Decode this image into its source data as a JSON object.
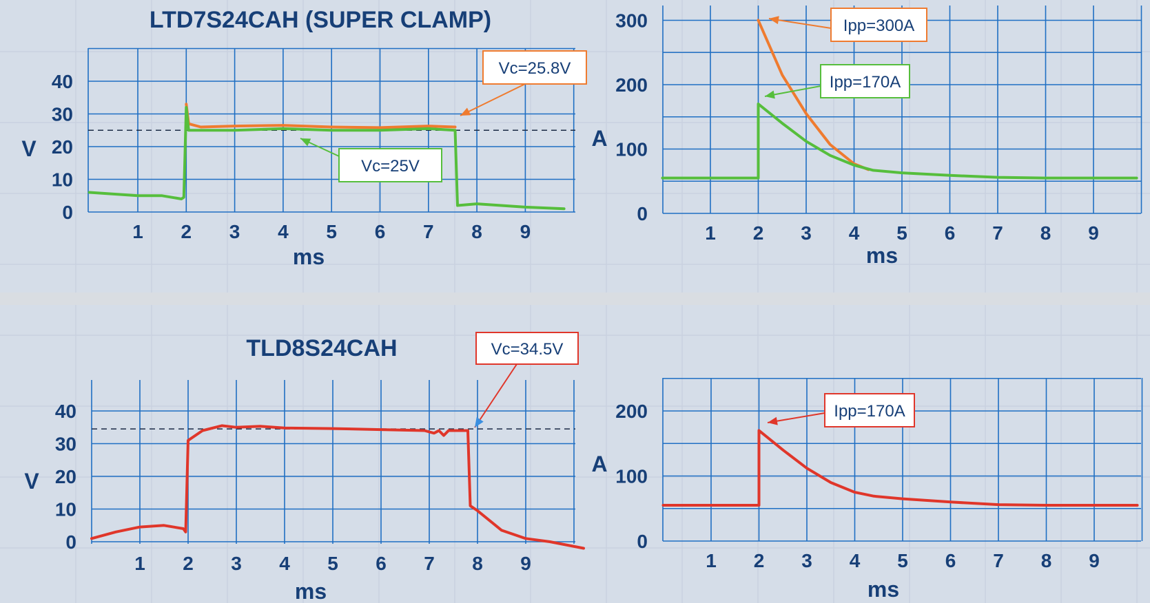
{
  "colors": {
    "background": "#d5dde8",
    "grid": "#1f6fc3",
    "text": "#173f77",
    "super_clamp_orange": "#ef7b2f",
    "super_clamp_green": "#56be3c",
    "tld_red": "#e0362a",
    "arrow_blue": "#3b8fe0"
  },
  "chart_data": [
    {
      "type": "line",
      "title": "LTD7S24CAH (SUPER CLAMP)",
      "xlabel": "ms",
      "ylabel": "V",
      "xlim": [
        0,
        10
      ],
      "ylim": [
        0,
        50
      ],
      "x_ticks": [
        "1",
        "2",
        "3",
        "4",
        "5",
        "6",
        "7",
        "8",
        "9"
      ],
      "y_ticks": [
        "0",
        "10",
        "20",
        "30",
        "40"
      ],
      "reference_line": 25,
      "series": [
        {
          "points": [
            [
              2.0,
              33
            ],
            [
              2.05,
              27
            ],
            [
              2.3,
              26
            ],
            [
              3,
              26.3
            ],
            [
              4,
              26.5
            ],
            [
              5,
              26
            ],
            [
              6,
              25.8
            ],
            [
              7,
              26.3
            ],
            [
              7.55,
              26
            ]
          ]
        },
        {
          "points": [
            [
              0,
              6
            ],
            [
              0.5,
              5.5
            ],
            [
              1,
              5
            ],
            [
              1.5,
              5
            ],
            [
              1.9,
              4
            ],
            [
              1.95,
              4.5
            ],
            [
              2.0,
              32
            ],
            [
              2.05,
              25
            ],
            [
              2.3,
              25
            ],
            [
              3,
              25
            ],
            [
              4,
              25.5
            ],
            [
              5,
              25
            ],
            [
              6,
              25
            ],
            [
              7,
              25.5
            ],
            [
              7.55,
              25
            ],
            [
              7.6,
              2
            ],
            [
              8,
              2.5
            ],
            [
              8.5,
              2
            ],
            [
              9,
              1.5
            ],
            [
              9.8,
              1
            ]
          ]
        }
      ],
      "annotations": [
        {
          "text": "Vc=25.8V",
          "x": 7.5,
          "y": 26
        },
        {
          "text": "Vc=25V",
          "x": 4.4,
          "y": 23
        }
      ]
    },
    {
      "type": "line",
      "xlabel": "ms",
      "ylabel": "A",
      "xlim": [
        0,
        10
      ],
      "ylim": [
        0,
        310
      ],
      "x_ticks": [
        "1",
        "2",
        "3",
        "4",
        "5",
        "6",
        "7",
        "8",
        "9"
      ],
      "y_ticks": [
        "0",
        "100",
        "200",
        "300"
      ],
      "series": [
        {
          "points": [
            [
              2,
              300
            ],
            [
              2.5,
              215
            ],
            [
              3,
              155
            ],
            [
              3.5,
              107
            ],
            [
              4,
              77
            ],
            [
              4.3,
              68
            ]
          ]
        },
        {
          "points": [
            [
              0,
              55
            ],
            [
              1,
              55
            ],
            [
              2,
              55
            ],
            [
              2,
              170
            ],
            [
              2.5,
              140
            ],
            [
              3,
              112
            ],
            [
              3.5,
              90
            ],
            [
              4,
              75
            ],
            [
              4.4,
              67
            ],
            [
              5,
              63
            ],
            [
              6,
              59
            ],
            [
              7,
              56
            ],
            [
              8,
              55
            ],
            [
              9,
              55
            ],
            [
              9.9,
              55
            ]
          ]
        }
      ],
      "annotations": [
        {
          "text": "Ipp=300A",
          "x": 2,
          "y": 300
        },
        {
          "text": "Ipp=170A",
          "x": 2,
          "y": 170
        }
      ]
    },
    {
      "type": "line",
      "title": "TLD8S24CAH",
      "xlabel": "ms",
      "ylabel": "V",
      "xlim": [
        0,
        10
      ],
      "ylim": [
        0,
        50
      ],
      "x_ticks": [
        "1",
        "2",
        "3",
        "4",
        "5",
        "6",
        "7",
        "8",
        "9"
      ],
      "y_ticks": [
        "0",
        "10",
        "20",
        "30",
        "40"
      ],
      "reference_line": 34.5,
      "series": [
        {
          "points": [
            [
              0,
              1
            ],
            [
              0.5,
              3
            ],
            [
              1,
              4.5
            ],
            [
              1.5,
              5
            ],
            [
              1.9,
              4
            ],
            [
              1.95,
              3
            ],
            [
              2,
              31
            ],
            [
              2.3,
              34
            ],
            [
              2.7,
              35.5
            ],
            [
              3,
              35
            ],
            [
              3.5,
              35.3
            ],
            [
              4,
              34.8
            ],
            [
              5,
              34.6
            ],
            [
              6,
              34.3
            ],
            [
              6.9,
              34
            ],
            [
              7.1,
              33.2
            ],
            [
              7.2,
              34
            ],
            [
              7.3,
              32.5
            ],
            [
              7.4,
              34
            ],
            [
              7.8,
              34
            ],
            [
              7.85,
              11
            ],
            [
              8,
              9.5
            ],
            [
              8.5,
              3.5
            ],
            [
              9,
              1
            ],
            [
              9.5,
              0
            ],
            [
              10.2,
              -2
            ]
          ]
        }
      ],
      "annotations": [
        {
          "text": "Vc=34.5V",
          "x": 7.9,
          "y": 35
        }
      ]
    },
    {
      "type": "line",
      "xlabel": "ms",
      "ylabel": "A",
      "xlim": [
        0,
        10
      ],
      "ylim": [
        0,
        250
      ],
      "x_ticks": [
        "1",
        "2",
        "3",
        "4",
        "5",
        "6",
        "7",
        "8",
        "9"
      ],
      "y_ticks": [
        "0",
        "100",
        "200"
      ],
      "series": [
        {
          "points": [
            [
              0,
              55
            ],
            [
              1,
              55
            ],
            [
              2,
              55
            ],
            [
              2,
              170
            ],
            [
              2.5,
              140
            ],
            [
              3,
              112
            ],
            [
              3.5,
              90
            ],
            [
              4,
              75
            ],
            [
              4.4,
              69
            ],
            [
              5,
              65
            ],
            [
              6,
              60
            ],
            [
              7,
              56
            ],
            [
              8,
              55
            ],
            [
              9,
              55
            ],
            [
              9.9,
              55
            ]
          ]
        }
      ],
      "annotations": [
        {
          "text": "Ipp=170A",
          "x": 2,
          "y": 170
        }
      ]
    }
  ]
}
